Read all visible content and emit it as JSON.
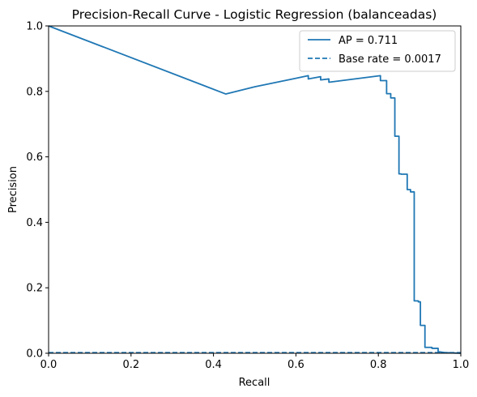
{
  "chart_data": {
    "type": "line",
    "title": "Precision-Recall Curve - Logistic Regression (balanceadas)",
    "xlabel": "Recall",
    "ylabel": "Precision",
    "xlim": [
      0.0,
      1.0
    ],
    "ylim": [
      0.0,
      1.0
    ],
    "xticks": [
      "0.0",
      "0.2",
      "0.4",
      "0.6",
      "0.8",
      "1.0"
    ],
    "yticks": [
      "0.0",
      "0.2",
      "0.4",
      "0.6",
      "0.8",
      "1.0"
    ],
    "grid": false,
    "legend_position": "top-right",
    "series": [
      {
        "name": "AP = 0.711",
        "color": "#1f77b4",
        "style": "solid",
        "x": [
          0.0,
          0.43,
          0.5,
          0.6,
          0.63,
          0.63,
          0.66,
          0.66,
          0.68,
          0.68,
          0.805,
          0.805,
          0.82,
          0.82,
          0.83,
          0.83,
          0.84,
          0.84,
          0.85,
          0.85,
          0.855,
          0.855,
          0.87,
          0.87,
          0.878,
          0.878,
          0.887,
          0.887,
          0.897,
          0.897,
          0.902,
          0.902,
          0.913,
          0.913,
          0.93,
          0.93,
          0.945,
          0.945,
          0.96,
          1.0
        ],
        "y": [
          1.0,
          0.792,
          0.814,
          0.84,
          0.848,
          0.838,
          0.845,
          0.835,
          0.838,
          0.828,
          0.848,
          0.833,
          0.833,
          0.793,
          0.793,
          0.78,
          0.78,
          0.663,
          0.663,
          0.548,
          0.548,
          0.547,
          0.547,
          0.5,
          0.5,
          0.493,
          0.493,
          0.16,
          0.16,
          0.157,
          0.157,
          0.085,
          0.085,
          0.018,
          0.018,
          0.015,
          0.015,
          0.005,
          0.002,
          0.0
        ]
      },
      {
        "name": "Base rate = 0.0017",
        "color": "#1f77b4",
        "style": "dashed",
        "x": [
          0.0,
          1.0
        ],
        "y": [
          0.0017,
          0.0017
        ]
      }
    ]
  }
}
